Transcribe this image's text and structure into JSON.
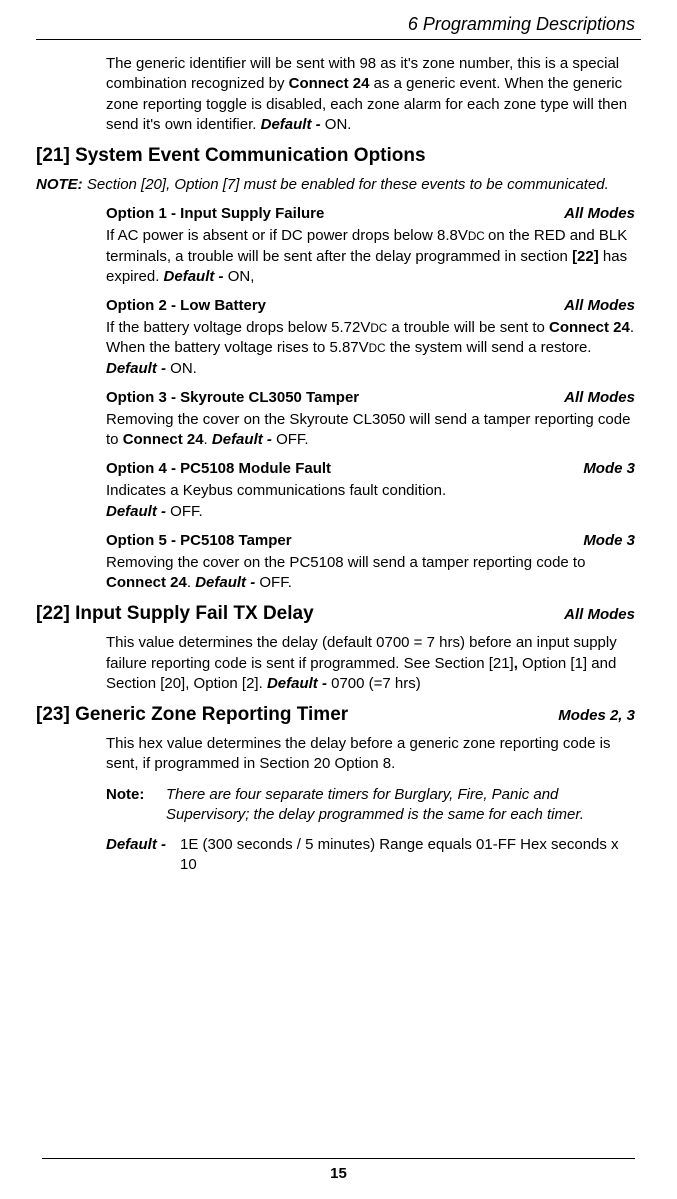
{
  "header": {
    "chapter_title": "6 Programming Descriptions"
  },
  "intro_paragraph": {
    "pre": "The generic identifier will be sent with 98 as it's zone number, this is a special combination recognized by ",
    "bold1": "Connect 24",
    "mid": " as a generic event.  When the generic zone reporting toggle is disabled, each zone alarm for each zone type will then send it's own identifier. ",
    "default_label": "Default - ",
    "default_value": "ON."
  },
  "s21": {
    "heading": "[21] System Event Communication Options",
    "note_label": "NOTE: ",
    "note_text": "Section [20], Option [7] must be enabled for these events to be communicated.",
    "opt1": {
      "title": "Option 1 - Input Supply Failure",
      "mode": "All Modes",
      "body_pre": "If AC power is absent or if DC power drops below 8.8V",
      "body_sc1": "DC ",
      "body_mid": " on the RED and BLK terminals, a trouble will be sent after the delay programmed in section ",
      "body_bold": "[22]",
      "body_post": " has expired. ",
      "default_label": "Default - ",
      "default_value": "ON,"
    },
    "opt2": {
      "title": "Option 2 - Low Battery",
      "mode": "All Modes",
      "body_pre": "If the battery voltage drops below 5.72V",
      "body_sc1": "DC",
      "body_mid1": " a trouble will be sent to ",
      "body_bold1": "Connect 24",
      "body_mid2": ". When the battery voltage rises to 5.87V",
      "body_sc2": "DC",
      "body_post": " the system will send a restore.",
      "default_label": "Default - ",
      "default_value": "ON."
    },
    "opt3": {
      "title": "Option 3 - Skyroute CL3050 Tamper",
      "mode": "All Modes",
      "body_pre": "Removing the cover on the Skyroute CL3050 will send a tamper reporting code to ",
      "body_bold": "Connect 24",
      "body_mid": ". ",
      "default_label": "Default - ",
      "default_value": "OFF."
    },
    "opt4": {
      "title": "Option 4 - PC5108 Module Fault",
      "mode": "Mode 3",
      "body": "Indicates a Keybus communications fault condition.",
      "default_label": "Default - ",
      "default_value": "OFF."
    },
    "opt5": {
      "title": "Option 5 - PC5108 Tamper",
      "mode": "Mode 3",
      "body_pre": "Removing the cover on the PC5108 will send a tamper reporting code to ",
      "body_bold": "Connect 24",
      "body_mid": ". ",
      "default_label": "Default - ",
      "default_value": "OFF."
    }
  },
  "s22": {
    "heading": "[22] Input Supply Fail TX Delay",
    "mode": "All Modes",
    "body_pre": "This value determines the delay (default 0700 = 7 hrs) before an input supply failure reporting code is sent if programmed.  See Section [21]",
    "body_bold1": ",",
    "body_mid": " Option [1] and Section [20], Option [2]. ",
    "default_label": "Default - ",
    "default_value": "0700 (=7 hrs)"
  },
  "s23": {
    "heading": "[23] Generic Zone Reporting Timer",
    "mode": "Modes 2, 3",
    "body": "This hex value determines the delay before a generic zone reporting code is sent, if programmed in Section 20 Option 8.",
    "note_label": "Note:",
    "note_text": "There are four separate timers for Burglary, Fire, Panic and Supervisory; the delay programmed is the same for each timer.",
    "default_label": "Default - ",
    "default_value": "1E (300 seconds / 5 minutes) Range equals 01-FF Hex seconds x 10"
  },
  "footer": {
    "page_number": "15"
  }
}
